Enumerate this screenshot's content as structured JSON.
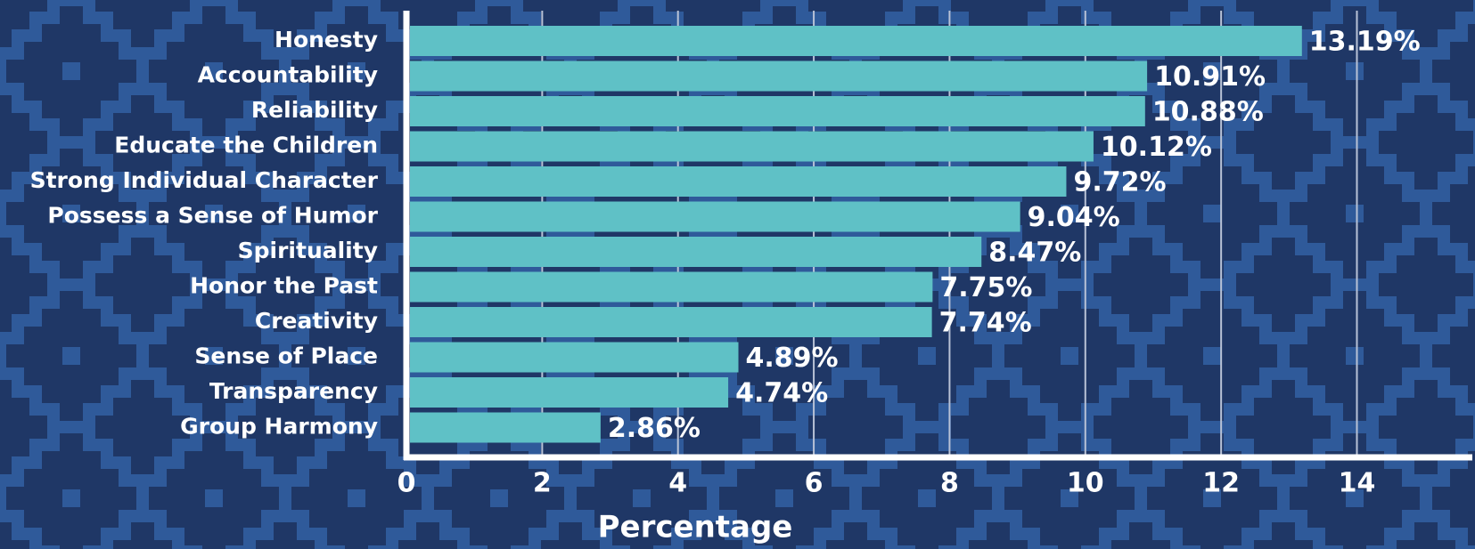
{
  "chart_data": {
    "type": "bar",
    "orientation": "horizontal",
    "xlabel": "Percentage",
    "categories": [
      "Honesty",
      "Accountability",
      "Reliability",
      "Educate the Children",
      "Strong Individual Character",
      "Possess a Sense of Humor",
      "Spirituality",
      "Honor the Past",
      "Creativity",
      "Sense of Place",
      "Transparency",
      "Group Harmony"
    ],
    "values": [
      13.19,
      10.91,
      10.88,
      10.12,
      9.72,
      9.04,
      8.47,
      7.75,
      7.74,
      4.89,
      4.74,
      2.86
    ],
    "value_labels": [
      "13.19%",
      "10.91%",
      "10.88%",
      "10.12%",
      "9.72%",
      "9.04%",
      "8.47%",
      "7.75%",
      "7.74%",
      "4.89%",
      "4.74%",
      "2.86%"
    ],
    "color": "#5fc1c6",
    "xlim": [
      0,
      15.7
    ],
    "xticks": [
      0,
      2,
      4,
      6,
      8,
      10,
      12,
      14
    ],
    "grid": true
  }
}
